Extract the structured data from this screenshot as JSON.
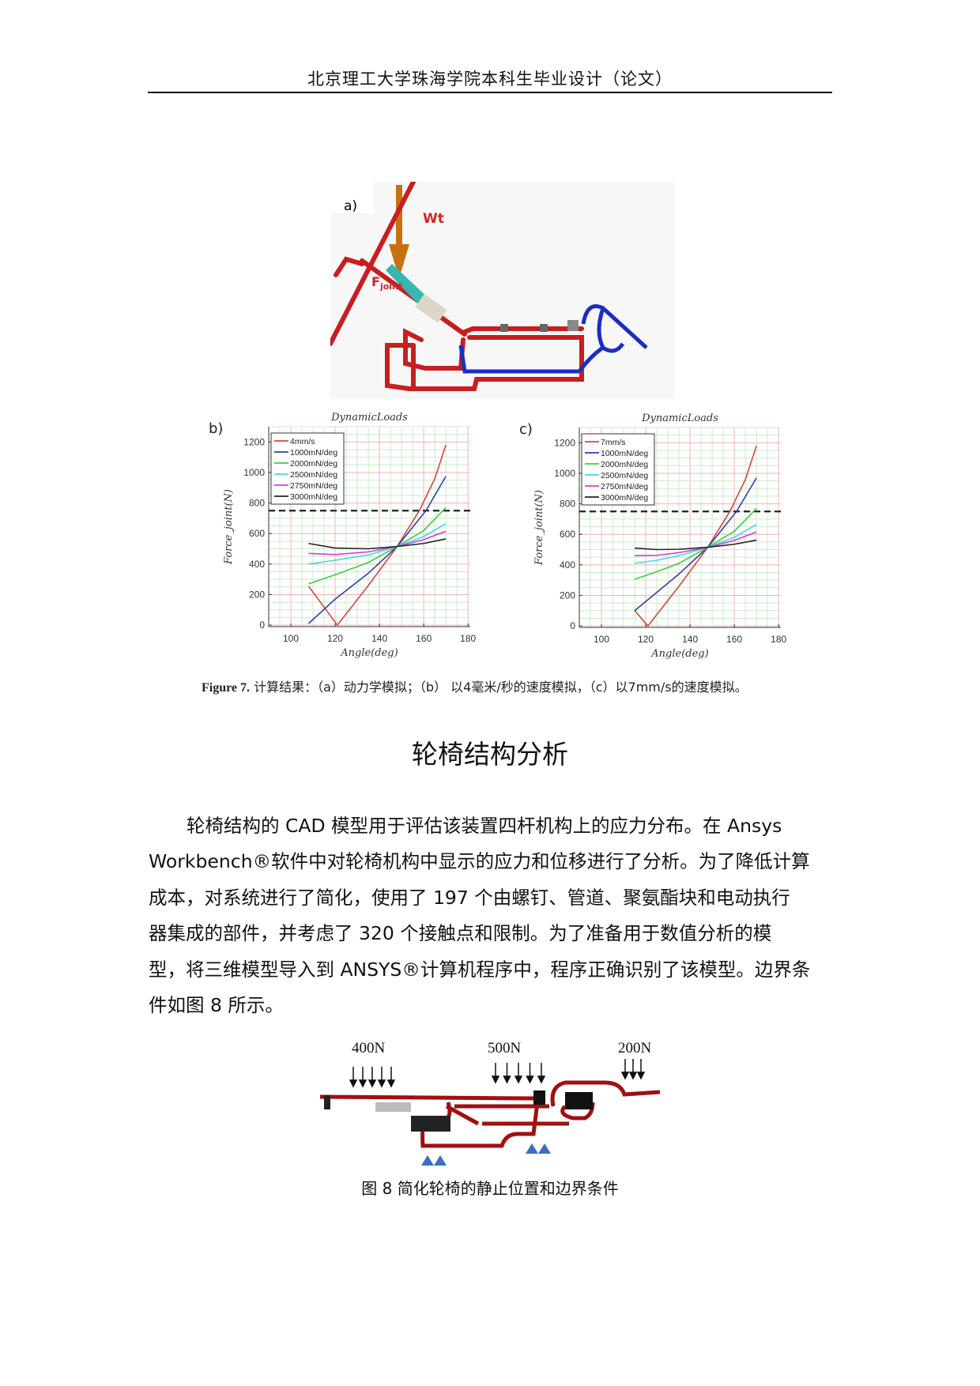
{
  "header": {
    "title": "北京理工大学珠海学院本科生毕业设计（论文）"
  },
  "figure_a": {
    "panel_label": "a)",
    "label_wt": "Wt",
    "label_f": "F",
    "label_f_sub": "joint"
  },
  "chart_data": [
    {
      "type": "line",
      "panel_label": "b)",
      "title": "DynamicLoads",
      "xlabel": "Angle(deg)",
      "ylabel": "Force_joint(N)",
      "xlim": [
        90,
        181
      ],
      "ylim": [
        -10,
        1300
      ],
      "xticks": [
        100,
        120,
        140,
        160,
        180
      ],
      "yticks": [
        0,
        200,
        400,
        600,
        800,
        1000,
        1200
      ],
      "grid": true,
      "legend_position": "top-left",
      "reference_line": {
        "y": 750,
        "style": "dashed",
        "color": "#222222"
      },
      "series": [
        {
          "name": "4mm/s",
          "color": "#d9443e",
          "x": [
            108,
            121,
            135,
            148,
            158,
            165,
            170
          ],
          "y": [
            255,
            0,
            260,
            515,
            750,
            960,
            1180
          ]
        },
        {
          "name": "1000mN/deg",
          "color": "#2f3fb0",
          "x": [
            108,
            120,
            135,
            148,
            161,
            170
          ],
          "y": [
            10,
            170,
            340,
            515,
            750,
            975
          ]
        },
        {
          "name": "2000mN/deg",
          "color": "#3ccf3c",
          "x": [
            108,
            120,
            135,
            148,
            160,
            170
          ],
          "y": [
            270,
            330,
            410,
            515,
            620,
            770
          ]
        },
        {
          "name": "2500mN/deg",
          "color": "#3fd9e0",
          "x": [
            108,
            120,
            135,
            148,
            160,
            170
          ],
          "y": [
            400,
            425,
            460,
            515,
            580,
            665
          ]
        },
        {
          "name": "2750mN/deg",
          "color": "#d63ad6",
          "x": [
            108,
            120,
            135,
            148,
            160,
            170
          ],
          "y": [
            470,
            462,
            480,
            515,
            560,
            615
          ]
        },
        {
          "name": "3000mN/deg",
          "color": "#222222",
          "x": [
            108,
            120,
            135,
            148,
            160,
            170
          ],
          "y": [
            535,
            505,
            500,
            515,
            535,
            565
          ]
        }
      ]
    },
    {
      "type": "line",
      "panel_label": "c)",
      "title": "DynamicLoads",
      "xlabel": "Angle(deg)",
      "ylabel": "Force_joint(N)",
      "xlim": [
        90,
        181
      ],
      "ylim": [
        -10,
        1300
      ],
      "xticks": [
        100,
        120,
        140,
        160,
        180
      ],
      "yticks": [
        0,
        200,
        400,
        600,
        800,
        1000,
        1200
      ],
      "grid": true,
      "legend_position": "top-left",
      "reference_line": {
        "y": 750,
        "style": "dashed",
        "color": "#222222"
      },
      "series": [
        {
          "name": "7mm/s",
          "color": "#d9443e",
          "x": [
            115,
            121,
            135,
            148,
            158,
            165,
            170
          ],
          "y": [
            100,
            0,
            260,
            515,
            750,
            960,
            1180
          ]
        },
        {
          "name": "1000mN/deg",
          "color": "#2f3fb0",
          "x": [
            115,
            125,
            135,
            148,
            161,
            170
          ],
          "y": [
            100,
            220,
            340,
            515,
            750,
            970
          ]
        },
        {
          "name": "2000mN/deg",
          "color": "#3ccf3c",
          "x": [
            115,
            125,
            135,
            148,
            160,
            170
          ],
          "y": [
            305,
            355,
            410,
            515,
            620,
            770
          ]
        },
        {
          "name": "2500mN/deg",
          "color": "#3fd9e0",
          "x": [
            115,
            125,
            135,
            148,
            160,
            170
          ],
          "y": [
            410,
            430,
            460,
            515,
            580,
            665
          ]
        },
        {
          "name": "2750mN/deg",
          "color": "#d63ad6",
          "x": [
            115,
            125,
            135,
            148,
            160,
            170
          ],
          "y": [
            460,
            462,
            480,
            515,
            560,
            615
          ]
        },
        {
          "name": "3000mN/deg",
          "color": "#222222",
          "x": [
            115,
            125,
            135,
            148,
            160,
            170
          ],
          "y": [
            510,
            500,
            502,
            515,
            535,
            562
          ]
        }
      ]
    }
  ],
  "figure7_caption": {
    "prefix": "Figure 7.",
    "text": "计算结果：（a）动力学模拟；（b） 以4毫米/秒的速度模拟，（c）以7mm/s的速度模拟。"
  },
  "section_title": "轮椅结构分析",
  "body_lines": [
    "轮椅结构的 CAD 模型用于评估该装置四杆机构上的应力分布。在 Ansys",
    "Workbench®软件中对轮椅机构中显示的应力和位移进行了分析。为了降低计算",
    "成本，对系统进行了简化，使用了 197 个由螺钉、管道、聚氨酯块和电动执行",
    "器集成的部件，并考虑了 320 个接触点和限制。为了准备用于数值分析的模",
    "型，将三维模型导入到 ANSYS®计算机程序中，程序正确识别了该模型。边界条",
    "件如图 8 所示。"
  ],
  "figure8": {
    "loads": [
      "400N",
      "500N",
      "200N"
    ],
    "caption": "图 8  简化轮椅的静止位置和边界条件"
  }
}
